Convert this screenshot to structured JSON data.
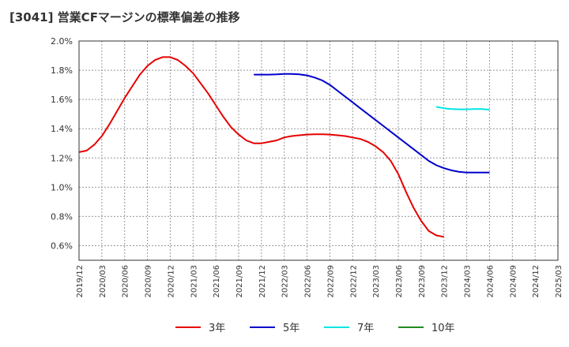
{
  "title": "[3041]  営業CFマージンの標準偏差の推移",
  "chart_data": {
    "type": "line",
    "title": "[3041]  営業CFマージンの標準偏差の推移",
    "xlabel": "",
    "ylabel": "",
    "ylim": [
      0.5,
      2.0
    ],
    "y_ticks": [
      "0.6%",
      "0.8%",
      "1.0%",
      "1.2%",
      "1.4%",
      "1.6%",
      "1.8%",
      "2.0%"
    ],
    "x_ticks": [
      "2019/12",
      "2020/03",
      "2020/06",
      "2020/09",
      "2020/12",
      "2021/03",
      "2021/06",
      "2021/09",
      "2021/12",
      "2022/03",
      "2022/06",
      "2022/09",
      "2022/12",
      "2023/03",
      "2023/06",
      "2023/09",
      "2023/12",
      "2024/03",
      "2024/06",
      "2024/09",
      "2024/12",
      "2025/03"
    ],
    "grid": true,
    "legend_position": "bottom",
    "series": [
      {
        "name": "3年",
        "color": "#e60000",
        "points": [
          [
            "2019/12",
            1.24
          ],
          [
            "2020/01",
            1.25
          ],
          [
            "2020/02",
            1.29
          ],
          [
            "2020/03",
            1.35
          ],
          [
            "2020/04",
            1.43
          ],
          [
            "2020/05",
            1.52
          ],
          [
            "2020/06",
            1.61
          ],
          [
            "2020/07",
            1.69
          ],
          [
            "2020/08",
            1.77
          ],
          [
            "2020/09",
            1.83
          ],
          [
            "2020/10",
            1.87
          ],
          [
            "2020/11",
            1.89
          ],
          [
            "2020/12",
            1.89
          ],
          [
            "2021/01",
            1.87
          ],
          [
            "2021/02",
            1.83
          ],
          [
            "2021/03",
            1.78
          ],
          [
            "2021/04",
            1.71
          ],
          [
            "2021/05",
            1.64
          ],
          [
            "2021/06",
            1.56
          ],
          [
            "2021/07",
            1.48
          ],
          [
            "2021/08",
            1.41
          ],
          [
            "2021/09",
            1.36
          ],
          [
            "2021/10",
            1.32
          ],
          [
            "2021/11",
            1.3
          ],
          [
            "2021/12",
            1.3
          ],
          [
            "2022/01",
            1.31
          ],
          [
            "2022/02",
            1.32
          ],
          [
            "2022/03",
            1.34
          ],
          [
            "2022/04",
            1.35
          ],
          [
            "2022/05",
            1.355
          ],
          [
            "2022/06",
            1.36
          ],
          [
            "2022/07",
            1.362
          ],
          [
            "2022/08",
            1.362
          ],
          [
            "2022/09",
            1.36
          ],
          [
            "2022/10",
            1.355
          ],
          [
            "2022/11",
            1.35
          ],
          [
            "2022/12",
            1.34
          ],
          [
            "2023/01",
            1.33
          ],
          [
            "2023/02",
            1.31
          ],
          [
            "2023/03",
            1.28
          ],
          [
            "2023/04",
            1.24
          ],
          [
            "2023/05",
            1.18
          ],
          [
            "2023/06",
            1.09
          ],
          [
            "2023/07",
            0.97
          ],
          [
            "2023/08",
            0.86
          ],
          [
            "2023/09",
            0.77
          ],
          [
            "2023/10",
            0.7
          ],
          [
            "2023/11",
            0.67
          ],
          [
            "2023/12",
            0.66
          ]
        ]
      },
      {
        "name": "5年",
        "color": "#0000cc",
        "points": [
          [
            "2021/11",
            1.77
          ],
          [
            "2021/12",
            1.77
          ],
          [
            "2022/01",
            1.77
          ],
          [
            "2022/02",
            1.772
          ],
          [
            "2022/03",
            1.775
          ],
          [
            "2022/04",
            1.775
          ],
          [
            "2022/05",
            1.772
          ],
          [
            "2022/06",
            1.765
          ],
          [
            "2022/07",
            1.75
          ],
          [
            "2022/08",
            1.73
          ],
          [
            "2022/09",
            1.7
          ],
          [
            "2022/10",
            1.66
          ],
          [
            "2022/11",
            1.62
          ],
          [
            "2022/12",
            1.58
          ],
          [
            "2023/01",
            1.54
          ],
          [
            "2023/02",
            1.5
          ],
          [
            "2023/03",
            1.46
          ],
          [
            "2023/04",
            1.42
          ],
          [
            "2023/05",
            1.38
          ],
          [
            "2023/06",
            1.34
          ],
          [
            "2023/07",
            1.3
          ],
          [
            "2023/08",
            1.26
          ],
          [
            "2023/09",
            1.22
          ],
          [
            "2023/10",
            1.18
          ],
          [
            "2023/11",
            1.15
          ],
          [
            "2023/12",
            1.13
          ],
          [
            "2024/01",
            1.115
          ],
          [
            "2024/02",
            1.105
          ],
          [
            "2024/03",
            1.1
          ],
          [
            "2024/06",
            1.1
          ]
        ]
      },
      {
        "name": "7年",
        "color": "#00e5e5",
        "points": [
          [
            "2023/11",
            1.55
          ],
          [
            "2023/12",
            1.54
          ],
          [
            "2024/01",
            1.535
          ],
          [
            "2024/02",
            1.533
          ],
          [
            "2024/03",
            1.533
          ],
          [
            "2024/04",
            1.535
          ],
          [
            "2024/05",
            1.535
          ],
          [
            "2024/06",
            1.53
          ]
        ]
      },
      {
        "name": "10年",
        "color": "#228b22",
        "points": []
      }
    ]
  }
}
